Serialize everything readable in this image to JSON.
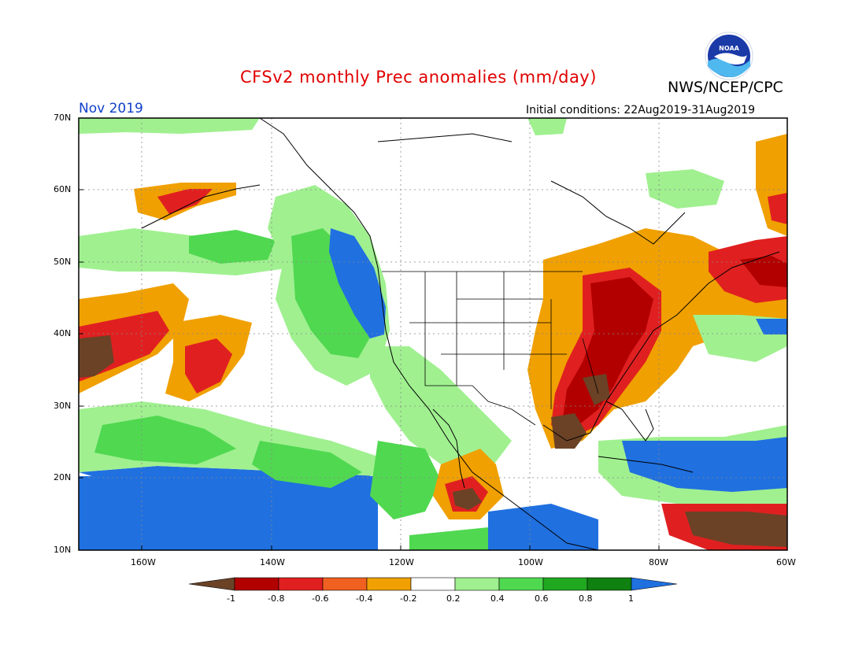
{
  "header": {
    "title": "CFSv2 monthly Prec anomalies (mm/day)",
    "agency": "NWS/NCEP/CPC",
    "month": "Nov 2019",
    "initial_conditions": "Initial conditions: 22Aug2019-31Aug2019",
    "logo_text": "NOAA"
  },
  "axes": {
    "lat_labels": [
      "70N",
      "60N",
      "50N",
      "40N",
      "30N",
      "20N",
      "10N"
    ],
    "lon_labels": [
      "160W",
      "140W",
      "120W",
      "100W",
      "80W",
      "60W"
    ]
  },
  "colorbar": {
    "labels": [
      "-1",
      "-0.8",
      "-0.6",
      "-0.4",
      "-0.2",
      "0.2",
      "0.4",
      "0.6",
      "0.8",
      "1"
    ],
    "colors": [
      "#6b4226",
      "#b20000",
      "#e02020",
      "#f06020",
      "#f0a000",
      "#ffffff",
      "#a0f090",
      "#50d850",
      "#20a820",
      "#108010",
      "#2070e0"
    ]
  },
  "palette": {
    "wet_strong": "#2070e0",
    "wet_med": "#20a820",
    "wet_light": "#a0f090",
    "dry_light": "#f0a000",
    "dry_med": "#e02020",
    "dry_strong": "#b20000",
    "dry_extreme": "#6b4226"
  }
}
